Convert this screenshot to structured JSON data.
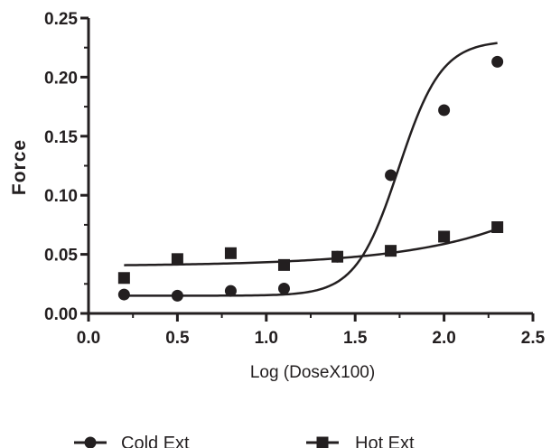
{
  "chart_data": {
    "type": "scatter",
    "xlabel": "Log (DoseX100)",
    "ylabel": "Force",
    "xlim": [
      0.0,
      2.5
    ],
    "ylim": [
      0.0,
      0.25
    ],
    "xticks": [
      "0.0",
      "0.5",
      "1.0",
      "1.5",
      "2.0",
      "2.5"
    ],
    "yticks": [
      "0.00",
      "0.05",
      "0.10",
      "0.15",
      "0.20",
      "0.25"
    ],
    "grid": false,
    "legend_position": "bottom",
    "color": "#231f20",
    "series": [
      {
        "name": "Cold Ext",
        "marker": "circle",
        "x": [
          0.2,
          0.5,
          0.8,
          1.1,
          1.4,
          1.7,
          2.0,
          2.3
        ],
        "y": [
          0.016,
          0.015,
          0.019,
          0.021,
          0.048,
          0.117,
          0.172,
          0.213
        ],
        "fit": "sigmoidal"
      },
      {
        "name": "Hot Ext",
        "marker": "square",
        "x": [
          0.2,
          0.5,
          0.8,
          1.1,
          1.4,
          1.7,
          2.0,
          2.3
        ],
        "y": [
          0.03,
          0.046,
          0.051,
          0.041,
          0.048,
          0.053,
          0.065,
          0.073
        ],
        "fit": "curve"
      }
    ]
  }
}
